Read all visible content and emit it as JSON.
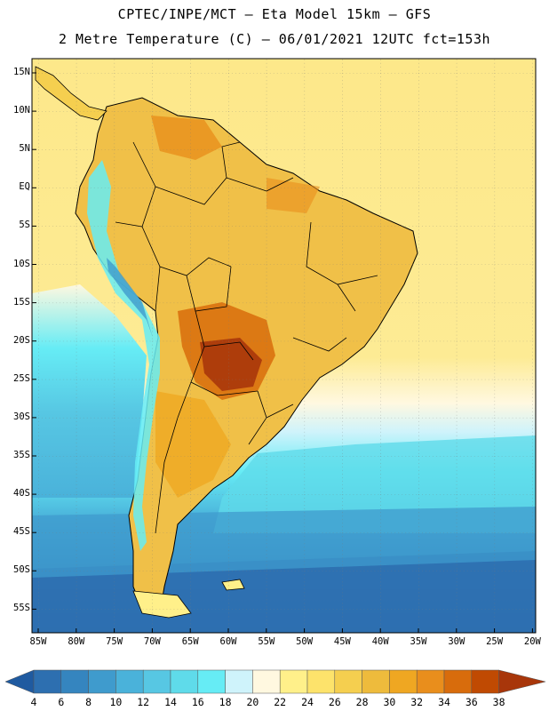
{
  "header": {
    "line1": "CPTEC/INPE/MCT –  Eta Model 15km – GFS",
    "line2": "2 Metre Temperature (C) – 06/01/2021 12UTC fct=153h"
  },
  "axes": {
    "lat_labels": [
      "15N",
      "10N",
      "5N",
      "EQ",
      "5S",
      "10S",
      "15S",
      "20S",
      "25S",
      "30S",
      "35S",
      "40S",
      "45S",
      "50S",
      "55S"
    ],
    "lon_labels": [
      "85W",
      "80W",
      "75W",
      "70W",
      "65W",
      "60W",
      "55W",
      "50W",
      "45W",
      "40W",
      "35W",
      "30W",
      "25W",
      "20W"
    ]
  },
  "colorbar": {
    "labels": [
      "4",
      "6",
      "8",
      "10",
      "12",
      "14",
      "16",
      "18",
      "20",
      "22",
      "24",
      "26",
      "28",
      "30",
      "32",
      "34",
      "36",
      "38"
    ],
    "colors": [
      "#2d6fb0",
      "#3585bf",
      "#3f9bcd",
      "#4ab2da",
      "#57c7e3",
      "#5fdbea",
      "#66ecf5",
      "#cff3fb",
      "#fff8e0",
      "#fff08a",
      "#fde36b",
      "#f5cf4f",
      "#eebb3c",
      "#efa722",
      "#e98e1c",
      "#d86c0c",
      "#c04a02"
    ],
    "low_color": "#1f5aa0",
    "high_color": "#a8360a"
  }
}
